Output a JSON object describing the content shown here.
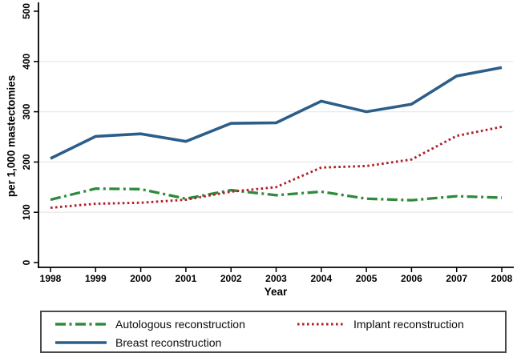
{
  "chart_data": {
    "type": "line",
    "title": "",
    "xlabel": "Year",
    "ylabel": "per 1,000 mastectomies",
    "x": [
      1998,
      1999,
      2000,
      2001,
      2002,
      2003,
      2004,
      2005,
      2006,
      2007,
      2008
    ],
    "xlim": [
      1998,
      2008
    ],
    "ylim": [
      0,
      500
    ],
    "yticks": [
      0,
      100,
      200,
      300,
      400,
      500
    ],
    "gridlines": [
      100,
      200,
      300,
      400
    ],
    "grid": "horizontal light-gray",
    "legend_position": "bottom-box",
    "series": [
      {
        "name": "Autologous reconstruction",
        "color": "#2e8b3c",
        "style": "dash-dot",
        "values": [
          125,
          147,
          146,
          127,
          144,
          134,
          141,
          127,
          124,
          132,
          129
        ]
      },
      {
        "name": "Implant reconstruction",
        "color": "#b02025",
        "style": "dotted",
        "values": [
          109,
          117,
          119,
          125,
          141,
          150,
          189,
          192,
          205,
          252,
          270
        ]
      },
      {
        "name": "Breast reconstruction",
        "color": "#2c5e8a",
        "style": "solid",
        "values": [
          207,
          251,
          256,
          241,
          277,
          278,
          321,
          300,
          315,
          371,
          388
        ]
      }
    ],
    "style_colors": {
      "grid": "#e9e9e9",
      "axis": "#000000",
      "text": "#000000",
      "legend_border": "#4a4a4a",
      "background": "#ffffff"
    }
  }
}
